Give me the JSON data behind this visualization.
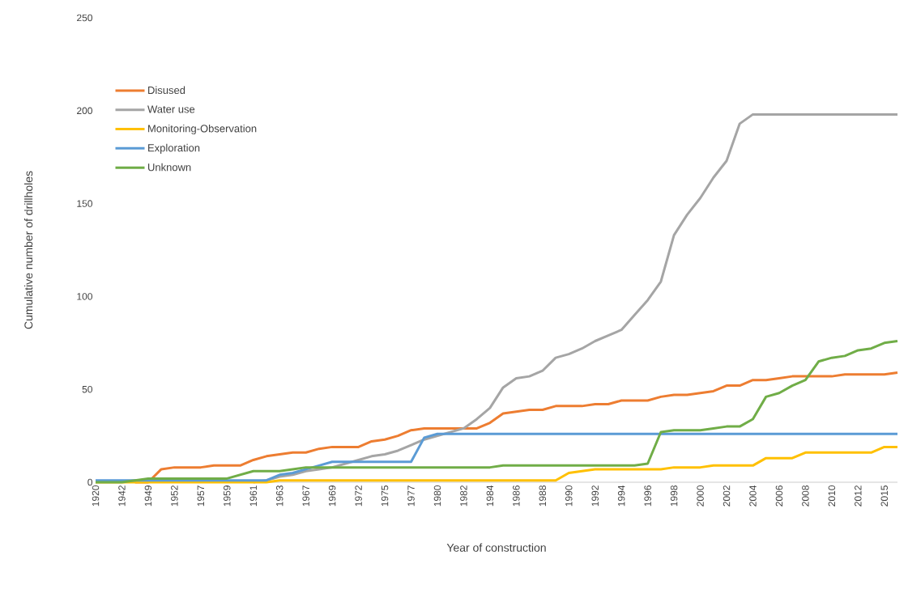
{
  "chart_data": {
    "type": "line",
    "xlabel": "Year of construction",
    "ylabel": "Cumulative number of drillholes",
    "categories": [
      "1920",
      null,
      "1942",
      null,
      "1949",
      null,
      "1952",
      null,
      "1957",
      null,
      "1959",
      null,
      "1961",
      null,
      "1963",
      null,
      "1967",
      null,
      "1969",
      null,
      "1972",
      null,
      "1975",
      null,
      "1977",
      null,
      "1980",
      null,
      "1982",
      null,
      "1984",
      null,
      "1986",
      null,
      "1988",
      null,
      "1990",
      null,
      "1992",
      null,
      "1994",
      null,
      "1996",
      null,
      "1998",
      null,
      "2000",
      null,
      "2002",
      null,
      "2004",
      null,
      "2006",
      null,
      "2008",
      null,
      "2010",
      null,
      "2012",
      null,
      "2015",
      null
    ],
    "ylim": [
      0,
      250
    ],
    "yticks": [
      0,
      50,
      100,
      150,
      200,
      250
    ],
    "grid": false,
    "legend": "top left",
    "marker": "none",
    "line_style": "solid",
    "series": [
      {
        "name": "Disused",
        "color": "#ed7d31",
        "values": [
          null,
          null,
          null,
          0,
          0,
          7,
          8,
          8,
          8,
          9,
          9,
          9,
          12,
          14,
          15,
          16,
          16,
          18,
          19,
          19,
          19,
          22,
          23,
          25,
          28,
          29,
          29,
          29,
          29,
          29,
          32,
          37,
          38,
          39,
          39,
          41,
          41,
          41,
          42,
          42,
          44,
          44,
          44,
          46,
          47,
          47,
          48,
          49,
          52,
          52,
          55,
          55,
          56,
          57,
          57,
          57,
          57,
          58,
          58,
          58,
          58,
          59
        ]
      },
      {
        "name": "Water use",
        "color": "#a5a5a5",
        "values": [
          null,
          null,
          null,
          null,
          null,
          null,
          null,
          null,
          null,
          null,
          null,
          null,
          0,
          1,
          3,
          4,
          6,
          7,
          8,
          10,
          12,
          14,
          15,
          17,
          20,
          23,
          25,
          27,
          29,
          34,
          40,
          51,
          56,
          57,
          60,
          67,
          69,
          72,
          76,
          79,
          82,
          90,
          98,
          108,
          133,
          144,
          153,
          164,
          173,
          193,
          198,
          198,
          198,
          198,
          198,
          198,
          198,
          198,
          198,
          198,
          198,
          198
        ]
      },
      {
        "name": "Monitoring-Observation",
        "color": "#ffc000",
        "values": [
          0,
          0,
          0,
          0,
          0,
          0,
          0,
          0,
          0,
          0,
          0,
          0,
          0,
          0,
          1,
          1,
          1,
          1,
          1,
          1,
          1,
          1,
          1,
          1,
          1,
          1,
          1,
          1,
          1,
          1,
          1,
          1,
          1,
          1,
          1,
          1,
          5,
          6,
          7,
          7,
          7,
          7,
          7,
          7,
          8,
          8,
          8,
          9,
          9,
          9,
          9,
          13,
          13,
          13,
          16,
          16,
          16,
          16,
          16,
          16,
          19,
          19
        ]
      },
      {
        "name": "Exploration",
        "color": "#5b9bd5",
        "values": [
          1,
          1,
          1,
          1,
          1,
          1,
          1,
          1,
          1,
          1,
          1,
          1,
          1,
          1,
          4,
          5,
          7,
          9,
          11,
          11,
          11,
          11,
          11,
          11,
          11,
          24,
          26,
          26,
          26,
          26,
          26,
          26,
          26,
          26,
          26,
          26,
          26,
          26,
          26,
          26,
          26,
          26,
          26,
          26,
          26,
          26,
          26,
          26,
          26,
          26,
          26,
          26,
          26,
          26,
          26,
          26,
          26,
          26,
          26,
          26,
          26,
          26
        ]
      },
      {
        "name": "Unknown",
        "color": "#70ad47",
        "values": [
          0,
          0,
          0,
          1,
          2,
          2,
          2,
          2,
          2,
          2,
          2,
          4,
          6,
          6,
          6,
          7,
          8,
          8,
          8,
          8,
          8,
          8,
          8,
          8,
          8,
          8,
          8,
          8,
          8,
          8,
          8,
          9,
          9,
          9,
          9,
          9,
          9,
          9,
          9,
          9,
          9,
          9,
          10,
          27,
          28,
          28,
          28,
          29,
          30,
          30,
          34,
          46,
          48,
          52,
          55,
          65,
          67,
          68,
          71,
          72,
          75,
          76
        ]
      }
    ]
  }
}
